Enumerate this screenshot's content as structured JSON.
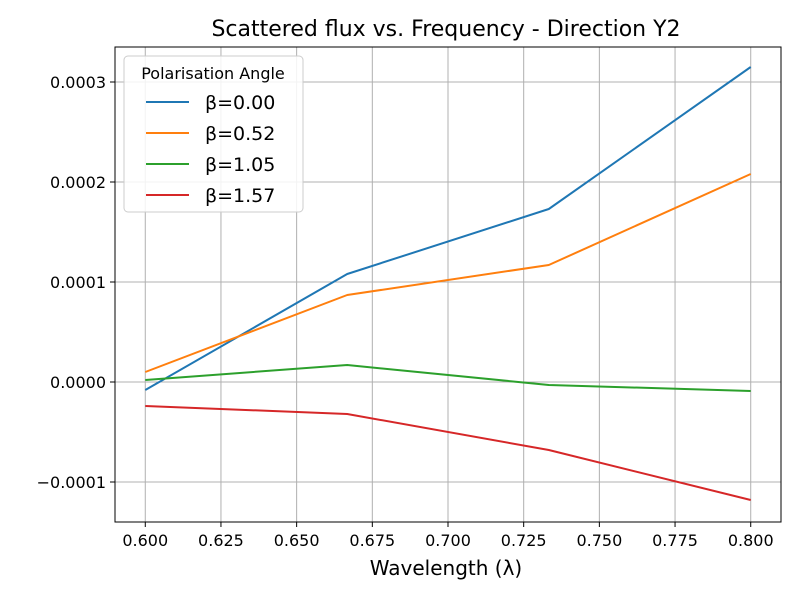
{
  "chart_data": {
    "type": "line",
    "title": "Scattered flux vs. Frequency - Direction Y2",
    "xlabel": "Wavelength (λ)",
    "ylabel": "",
    "xlim": [
      0.59,
      0.81
    ],
    "ylim": [
      -0.00014,
      0.000335
    ],
    "grid": true,
    "legend": {
      "title": "Polarisation Angle",
      "placement": "top-left"
    },
    "x": [
      0.6,
      0.6667,
      0.7333,
      0.8
    ],
    "x_ticks": [
      {
        "value": 0.6,
        "label": "0.600"
      },
      {
        "value": 0.625,
        "label": "0.625"
      },
      {
        "value": 0.65,
        "label": "0.650"
      },
      {
        "value": 0.675,
        "label": "0.675"
      },
      {
        "value": 0.7,
        "label": "0.700"
      },
      {
        "value": 0.725,
        "label": "0.725"
      },
      {
        "value": 0.75,
        "label": "0.750"
      },
      {
        "value": 0.775,
        "label": "0.775"
      },
      {
        "value": 0.8,
        "label": "0.800"
      }
    ],
    "y_ticks": [
      {
        "value": -0.0001,
        "label": "−0.0001"
      },
      {
        "value": 0.0,
        "label": "0.0000"
      },
      {
        "value": 0.0001,
        "label": "0.0001"
      },
      {
        "value": 0.0002,
        "label": "0.0002"
      },
      {
        "value": 0.0003,
        "label": "0.0003"
      }
    ],
    "series": [
      {
        "name": "β=0.00",
        "color": "#1f77b4",
        "values": [
          -8e-06,
          0.000108,
          0.000173,
          0.000315
        ]
      },
      {
        "name": "β=0.52",
        "color": "#ff7f0e",
        "values": [
          1e-05,
          8.7e-05,
          0.000117,
          0.000208
        ]
      },
      {
        "name": "β=1.05",
        "color": "#2ca02c",
        "values": [
          2e-06,
          1.7e-05,
          -3e-06,
          -9e-06
        ]
      },
      {
        "name": "β=1.57",
        "color": "#d62728",
        "values": [
          -2.4e-05,
          -3.2e-05,
          -6.8e-05,
          -0.000118
        ]
      }
    ]
  }
}
